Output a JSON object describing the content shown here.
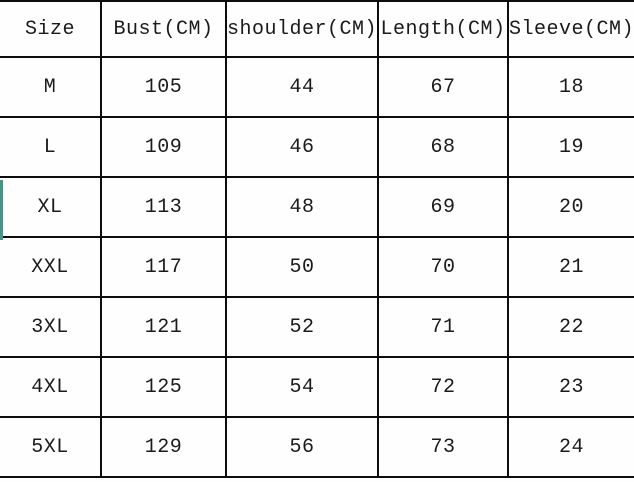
{
  "page": {
    "background": "#fefefe",
    "border_color": "#0d0d0d",
    "text_color": "#1b1b1b",
    "accent_color": "#469687"
  },
  "chart_data": {
    "type": "table",
    "columns": [
      "Size",
      "Bust(CM)",
      "shoulder(CM)",
      "Length(CM)",
      "Sleeve(CM)"
    ],
    "rows": [
      [
        "M",
        "105",
        "44",
        "67",
        "18"
      ],
      [
        "L",
        "109",
        "46",
        "68",
        "19"
      ],
      [
        "XL",
        "113",
        "48",
        "69",
        "20"
      ],
      [
        "XXL",
        "117",
        "50",
        "70",
        "21"
      ],
      [
        "3XL",
        "121",
        "52",
        "71",
        "22"
      ],
      [
        "4XL",
        "125",
        "54",
        "72",
        "23"
      ],
      [
        "5XL",
        "129",
        "56",
        "73",
        "24"
      ]
    ]
  }
}
